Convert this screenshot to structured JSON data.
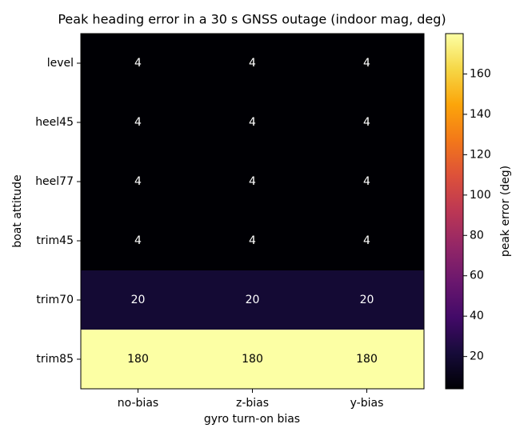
{
  "chart_data": {
    "type": "heatmap",
    "title": "Peak heading error in a 30 s GNSS outage (indoor mag, deg)",
    "x_label": "gyro turn-on bias",
    "y_label": "boat attitude",
    "colorbar_label": "peak error (deg)",
    "categories": [
      "no-bias",
      "z-bias",
      "y-bias"
    ],
    "rows": [
      "level",
      "heel45",
      "heel77",
      "trim45",
      "trim70",
      "trim85"
    ],
    "values": [
      [
        4,
        4,
        4
      ],
      [
        4,
        4,
        4
      ],
      [
        4,
        4,
        4
      ],
      [
        4,
        4,
        4
      ],
      [
        20,
        20,
        20
      ],
      [
        180,
        180,
        180
      ]
    ],
    "colormap": "inferno",
    "clim": [
      4,
      180
    ],
    "colorbar_ticks": [
      20,
      40,
      60,
      80,
      100,
      120,
      140,
      160
    ]
  }
}
